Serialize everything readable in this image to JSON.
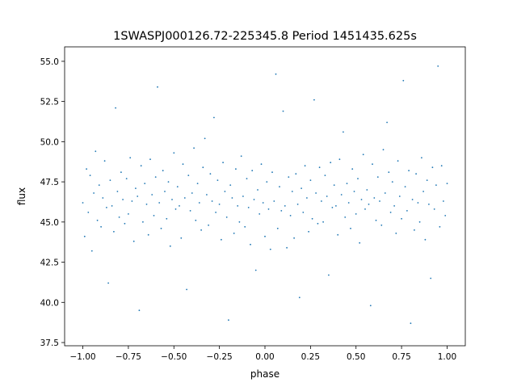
{
  "chart_data": {
    "type": "scatter",
    "title": "1SWASPJ000126.72-225345.8 Period 1451435.625s",
    "xlabel": "phase",
    "ylabel": "flux",
    "xlim": [
      -1.1,
      1.1
    ],
    "ylim": [
      37.3,
      55.9
    ],
    "xticks": [
      -1.0,
      -0.75,
      -0.5,
      -0.25,
      0.0,
      0.25,
      0.5,
      0.75,
      1.0
    ],
    "xtick_labels": [
      "−1.00",
      "−0.75",
      "−0.50",
      "−0.25",
      "0.00",
      "0.25",
      "0.50",
      "0.75",
      "1.00"
    ],
    "yticks": [
      37.5,
      40.0,
      42.5,
      45.0,
      47.5,
      50.0,
      52.5,
      55.0
    ],
    "ytick_labels": [
      "37.5",
      "40.0",
      "42.5",
      "45.0",
      "47.5",
      "50.0",
      "52.5",
      "55.0"
    ],
    "grid": false,
    "color": "#1f77b4",
    "points": [
      [
        -1.0,
        46.2
      ],
      [
        -0.99,
        44.1
      ],
      [
        -0.98,
        48.3
      ],
      [
        -0.97,
        45.6
      ],
      [
        -0.96,
        47.9
      ],
      [
        -0.95,
        43.2
      ],
      [
        -0.94,
        46.8
      ],
      [
        -0.93,
        49.4
      ],
      [
        -0.92,
        45.1
      ],
      [
        -0.91,
        47.3
      ],
      [
        -0.9,
        44.7
      ],
      [
        -0.89,
        46.5
      ],
      [
        -0.88,
        48.8
      ],
      [
        -0.87,
        45.9
      ],
      [
        -0.86,
        41.2
      ],
      [
        -0.85,
        47.6
      ],
      [
        -0.84,
        46.0
      ],
      [
        -0.83,
        44.4
      ],
      [
        -0.82,
        52.1
      ],
      [
        -0.81,
        46.9
      ],
      [
        -0.8,
        45.3
      ],
      [
        -0.79,
        48.1
      ],
      [
        -0.78,
        46.4
      ],
      [
        -0.77,
        44.9
      ],
      [
        -0.76,
        47.7
      ],
      [
        -0.75,
        45.5
      ],
      [
        -0.74,
        49.0
      ],
      [
        -0.73,
        46.3
      ],
      [
        -0.72,
        43.8
      ],
      [
        -0.71,
        47.1
      ],
      [
        -0.7,
        46.6
      ],
      [
        -0.69,
        39.5
      ],
      [
        -0.68,
        48.5
      ],
      [
        -0.67,
        45.0
      ],
      [
        -0.66,
        47.4
      ],
      [
        -0.65,
        46.1
      ],
      [
        -0.64,
        44.2
      ],
      [
        -0.63,
        48.9
      ],
      [
        -0.62,
        46.7
      ],
      [
        -0.61,
        45.4
      ],
      [
        -0.6,
        47.8
      ],
      [
        -0.59,
        53.4
      ],
      [
        -0.58,
        46.2
      ],
      [
        -0.57,
        44.6
      ],
      [
        -0.56,
        48.2
      ],
      [
        -0.55,
        46.9
      ],
      [
        -0.54,
        45.2
      ],
      [
        -0.53,
        47.5
      ],
      [
        -0.52,
        43.5
      ],
      [
        -0.51,
        46.4
      ],
      [
        -0.5,
        49.3
      ],
      [
        -0.49,
        45.8
      ],
      [
        -0.48,
        47.2
      ],
      [
        -0.47,
        46.0
      ],
      [
        -0.46,
        44.0
      ],
      [
        -0.45,
        48.6
      ],
      [
        -0.44,
        46.5
      ],
      [
        -0.43,
        40.8
      ],
      [
        -0.42,
        47.9
      ],
      [
        -0.41,
        45.7
      ],
      [
        -0.4,
        46.8
      ],
      [
        -0.39,
        49.6
      ],
      [
        -0.38,
        45.1
      ],
      [
        -0.37,
        47.4
      ],
      [
        -0.36,
        46.2
      ],
      [
        -0.35,
        44.5
      ],
      [
        -0.34,
        48.4
      ],
      [
        -0.33,
        50.2
      ],
      [
        -0.32,
        46.7
      ],
      [
        -0.31,
        44.8
      ],
      [
        -0.3,
        48.0
      ],
      [
        -0.29,
        46.3
      ],
      [
        -0.28,
        51.5
      ],
      [
        -0.27,
        45.6
      ],
      [
        -0.26,
        47.6
      ],
      [
        -0.25,
        46.1
      ],
      [
        -0.24,
        43.9
      ],
      [
        -0.23,
        48.7
      ],
      [
        -0.22,
        46.9
      ],
      [
        -0.21,
        45.3
      ],
      [
        -0.2,
        38.9
      ],
      [
        -0.19,
        47.3
      ],
      [
        -0.18,
        46.5
      ],
      [
        -0.17,
        44.3
      ],
      [
        -0.16,
        48.3
      ],
      [
        -0.15,
        46.0
      ],
      [
        -0.14,
        45.0
      ],
      [
        -0.13,
        49.1
      ],
      [
        -0.12,
        46.6
      ],
      [
        -0.11,
        44.7
      ],
      [
        -0.1,
        47.7
      ],
      [
        -0.09,
        45.9
      ],
      [
        -0.08,
        43.6
      ],
      [
        -0.07,
        48.2
      ],
      [
        -0.06,
        46.4
      ],
      [
        -0.05,
        42.0
      ],
      [
        -0.04,
        47.0
      ],
      [
        -0.03,
        45.5
      ],
      [
        -0.02,
        48.6
      ],
      [
        -0.01,
        46.2
      ],
      [
        0.0,
        44.1
      ],
      [
        0.01,
        47.5
      ],
      [
        0.02,
        45.8
      ],
      [
        0.03,
        43.3
      ],
      [
        0.04,
        48.1
      ],
      [
        0.05,
        46.3
      ],
      [
        0.06,
        54.2
      ],
      [
        0.07,
        44.6
      ],
      [
        0.08,
        47.2
      ],
      [
        0.09,
        45.7
      ],
      [
        0.1,
        51.9
      ],
      [
        0.11,
        46.0
      ],
      [
        0.12,
        43.4
      ],
      [
        0.13,
        47.8
      ],
      [
        0.14,
        45.4
      ],
      [
        0.15,
        46.9
      ],
      [
        0.16,
        44.0
      ],
      [
        0.17,
        48.0
      ],
      [
        0.18,
        46.1
      ],
      [
        0.19,
        40.3
      ],
      [
        0.2,
        47.1
      ],
      [
        0.21,
        45.6
      ],
      [
        0.22,
        48.5
      ],
      [
        0.23,
        46.5
      ],
      [
        0.24,
        44.4
      ],
      [
        0.25,
        47.6
      ],
      [
        0.26,
        45.2
      ],
      [
        0.27,
        52.6
      ],
      [
        0.28,
        46.8
      ],
      [
        0.29,
        44.9
      ],
      [
        0.3,
        48.4
      ],
      [
        0.31,
        46.3
      ],
      [
        0.32,
        45.0
      ],
      [
        0.33,
        47.9
      ],
      [
        0.34,
        46.6
      ],
      [
        0.35,
        41.7
      ],
      [
        0.36,
        48.7
      ],
      [
        0.37,
        45.9
      ],
      [
        0.38,
        47.3
      ],
      [
        0.39,
        46.0
      ],
      [
        0.4,
        44.2
      ],
      [
        0.41,
        48.9
      ],
      [
        0.42,
        46.7
      ],
      [
        0.43,
        50.6
      ],
      [
        0.44,
        45.3
      ],
      [
        0.45,
        47.4
      ],
      [
        0.46,
        46.2
      ],
      [
        0.47,
        44.6
      ],
      [
        0.48,
        48.3
      ],
      [
        0.49,
        46.9
      ],
      [
        0.5,
        45.5
      ],
      [
        0.51,
        47.7
      ],
      [
        0.52,
        43.7
      ],
      [
        0.53,
        46.4
      ],
      [
        0.54,
        49.2
      ],
      [
        0.55,
        45.8
      ],
      [
        0.56,
        47.0
      ],
      [
        0.57,
        46.1
      ],
      [
        0.58,
        39.8
      ],
      [
        0.59,
        48.6
      ],
      [
        0.6,
        46.5
      ],
      [
        0.61,
        45.1
      ],
      [
        0.62,
        47.8
      ],
      [
        0.63,
        46.3
      ],
      [
        0.64,
        44.8
      ],
      [
        0.65,
        49.5
      ],
      [
        0.66,
        46.8
      ],
      [
        0.67,
        51.2
      ],
      [
        0.68,
        48.1
      ],
      [
        0.69,
        45.6
      ],
      [
        0.7,
        47.5
      ],
      [
        0.71,
        46.0
      ],
      [
        0.72,
        44.3
      ],
      [
        0.73,
        48.8
      ],
      [
        0.74,
        46.6
      ],
      [
        0.75,
        45.2
      ],
      [
        0.76,
        53.8
      ],
      [
        0.77,
        47.2
      ],
      [
        0.78,
        45.7
      ],
      [
        0.79,
        48.2
      ],
      [
        0.8,
        38.7
      ],
      [
        0.81,
        46.4
      ],
      [
        0.82,
        44.5
      ],
      [
        0.83,
        48.0
      ],
      [
        0.84,
        46.2
      ],
      [
        0.85,
        45.0
      ],
      [
        0.86,
        49.0
      ],
      [
        0.87,
        46.9
      ],
      [
        0.88,
        43.9
      ],
      [
        0.89,
        47.6
      ],
      [
        0.9,
        46.1
      ],
      [
        0.91,
        41.5
      ],
      [
        0.92,
        48.4
      ],
      [
        0.93,
        45.8
      ],
      [
        0.94,
        47.3
      ],
      [
        0.95,
        54.7
      ],
      [
        0.96,
        44.7
      ],
      [
        0.97,
        48.5
      ],
      [
        0.98,
        46.3
      ],
      [
        0.99,
        45.4
      ],
      [
        1.0,
        47.4
      ]
    ]
  }
}
